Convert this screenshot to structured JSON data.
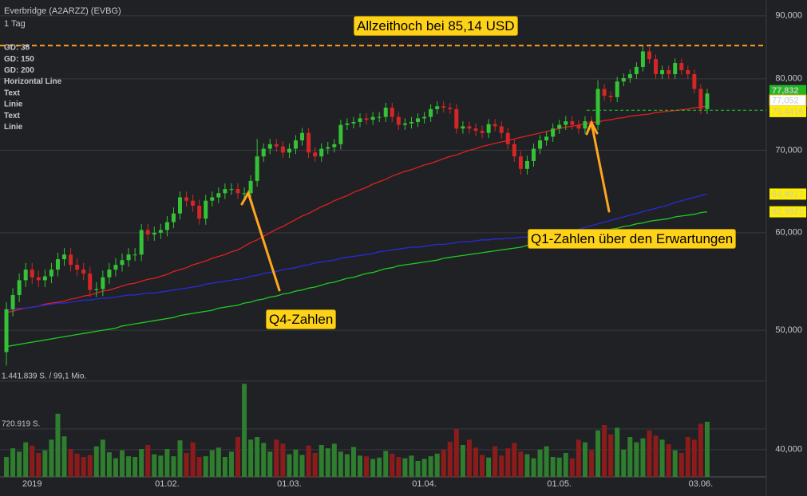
{
  "chart_data": {
    "type": "candlestick",
    "title": "Everbridge (A2ARZZ) (EVBG)",
    "subtitle": "1 Tag",
    "categories": [
      null,
      null,
      null,
      null,
      "2019",
      null,
      null,
      null,
      null,
      null,
      null,
      null,
      null,
      null,
      null,
      null,
      null,
      null,
      null,
      null,
      null,
      null,
      null,
      null,
      null,
      "01.02.",
      null,
      null,
      null,
      null,
      null,
      null,
      null,
      null,
      null,
      null,
      null,
      null,
      null,
      null,
      null,
      null,
      null,
      null,
      "01.03.",
      null,
      null,
      null,
      null,
      null,
      null,
      null,
      null,
      null,
      null,
      null,
      null,
      null,
      null,
      null,
      null,
      null,
      null,
      null,
      null,
      "01.04.",
      null,
      null,
      null,
      null,
      null,
      null,
      null,
      null,
      null,
      null,
      null,
      null,
      null,
      null,
      null,
      null,
      null,
      null,
      null,
      null,
      "01.05.",
      null,
      null,
      null,
      null,
      null,
      null,
      null,
      null,
      null,
      null,
      null,
      null,
      null,
      null,
      null,
      null,
      null,
      null,
      null,
      null,
      null,
      "03.06.",
      null
    ],
    "open": [
      48.0,
      52.0,
      53.4,
      54.9,
      56.0,
      55.2,
      54.9,
      55.3,
      56.0,
      57.1,
      57.6,
      56.5,
      56.0,
      55.6,
      53.9,
      54.0,
      55.2,
      56.0,
      56.5,
      57.0,
      57.6,
      57.6,
      60.3,
      59.8,
      60.0,
      60.3,
      61.2,
      62.2,
      64.1,
      63.7,
      63.1,
      61.6,
      63.7,
      64.1,
      64.6,
      65.1,
      65.1,
      64.6,
      64.6,
      66.1,
      69.2,
      70.2,
      70.8,
      70.5,
      69.7,
      70.2,
      71.3,
      72.3,
      69.7,
      69.2,
      70.2,
      70.4,
      70.8,
      73.4,
      73.6,
      73.8,
      74.3,
      74.1,
      74.5,
      74.5,
      75.8,
      74.5,
      73.4,
      73.6,
      73.8,
      74.3,
      74.5,
      75.6,
      76.0,
      75.8,
      75.6,
      72.9,
      73.2,
      72.9,
      72.6,
      72.3,
      73.5,
      73.2,
      72.3,
      70.8,
      69.2,
      67.6,
      68.6,
      70.2,
      71.3,
      71.8,
      72.9,
      73.4,
      73.9,
      73.4,
      72.9,
      73.9,
      73.4,
      78.5,
      77.5,
      77.3,
      79.6,
      80.1,
      80.7,
      81.8,
      84.2,
      83.0,
      80.7,
      81.3,
      80.7,
      82.4,
      81.3,
      80.7,
      78.5,
      75.6
    ],
    "high": [
      52.7,
      54.1,
      55.6,
      56.7,
      56.7,
      55.9,
      56.0,
      56.7,
      57.8,
      58.3,
      58.3,
      57.2,
      56.7,
      56.3,
      54.7,
      55.9,
      56.7,
      57.2,
      57.7,
      58.3,
      58.3,
      61.0,
      61.0,
      60.7,
      61.0,
      61.9,
      62.9,
      64.8,
      64.8,
      64.4,
      63.8,
      64.4,
      64.8,
      65.3,
      65.8,
      65.8,
      65.8,
      65.3,
      66.8,
      71.5,
      70.9,
      71.5,
      71.5,
      71.2,
      70.9,
      72.0,
      73.0,
      73.0,
      70.4,
      70.9,
      71.1,
      71.5,
      74.1,
      74.3,
      74.5,
      75.0,
      75.0,
      75.2,
      75.2,
      76.5,
      76.5,
      75.2,
      74.3,
      74.5,
      75.0,
      75.2,
      76.3,
      76.7,
      76.7,
      76.5,
      76.3,
      73.9,
      73.9,
      73.6,
      73.3,
      74.2,
      74.2,
      73.9,
      73.0,
      71.5,
      69.9,
      69.3,
      70.9,
      72.0,
      72.5,
      73.6,
      74.1,
      74.6,
      74.6,
      74.1,
      74.6,
      74.6,
      79.8,
      79.2,
      78.2,
      80.3,
      80.8,
      81.4,
      82.5,
      85.14,
      84.9,
      83.7,
      82.0,
      82.0,
      83.1,
      83.1,
      82.0,
      81.4,
      79.2,
      78.5
    ],
    "low": [
      46.8,
      51.3,
      52.7,
      54.2,
      54.5,
      54.2,
      54.2,
      54.6,
      55.3,
      56.4,
      55.8,
      55.3,
      54.9,
      53.2,
      53.2,
      53.3,
      54.5,
      55.3,
      55.8,
      56.3,
      56.9,
      56.9,
      59.1,
      59.1,
      59.3,
      59.6,
      60.5,
      61.5,
      63.0,
      62.4,
      60.9,
      60.9,
      63.0,
      63.4,
      63.9,
      64.4,
      63.9,
      63.9,
      63.9,
      65.4,
      68.5,
      69.5,
      69.8,
      69.0,
      69.0,
      69.5,
      70.6,
      69.0,
      68.5,
      68.5,
      69.5,
      69.7,
      70.1,
      72.7,
      72.9,
      73.1,
      73.4,
      73.4,
      73.8,
      73.8,
      73.8,
      72.7,
      72.7,
      72.9,
      73.1,
      73.6,
      73.8,
      74.9,
      75.1,
      74.9,
      72.2,
      72.2,
      72.2,
      71.9,
      71.6,
      71.6,
      72.5,
      71.6,
      70.1,
      68.5,
      66.9,
      66.9,
      67.9,
      69.5,
      70.6,
      71.1,
      72.2,
      72.7,
      72.7,
      72.2,
      72.2,
      72.7,
      72.7,
      76.8,
      76.6,
      76.6,
      78.9,
      79.4,
      80.0,
      81.1,
      82.3,
      80.0,
      80.0,
      80.0,
      80.0,
      80.6,
      80.0,
      77.8,
      74.9,
      74.9
    ],
    "close": [
      52.0,
      53.4,
      54.9,
      56.0,
      55.2,
      54.9,
      55.3,
      56.0,
      57.1,
      57.6,
      56.5,
      56.0,
      55.6,
      53.9,
      54.0,
      55.2,
      56.0,
      56.5,
      57.0,
      57.6,
      57.6,
      60.3,
      59.8,
      60.0,
      60.3,
      61.2,
      62.2,
      64.1,
      63.7,
      63.1,
      61.6,
      63.7,
      64.1,
      64.6,
      65.1,
      65.1,
      64.6,
      64.6,
      66.1,
      69.2,
      70.2,
      70.8,
      70.5,
      69.7,
      70.2,
      71.3,
      72.3,
      69.7,
      69.2,
      70.2,
      70.4,
      70.8,
      73.4,
      73.6,
      73.8,
      74.3,
      74.1,
      74.5,
      74.5,
      75.8,
      74.5,
      73.4,
      73.6,
      73.8,
      74.3,
      74.5,
      75.6,
      76.0,
      75.8,
      75.6,
      72.9,
      73.2,
      72.9,
      72.6,
      72.3,
      73.5,
      73.2,
      72.3,
      70.8,
      69.2,
      67.6,
      68.6,
      70.2,
      71.3,
      71.8,
      72.9,
      73.4,
      73.9,
      73.4,
      72.9,
      73.9,
      73.4,
      78.5,
      77.5,
      77.3,
      79.6,
      80.1,
      80.7,
      81.8,
      84.2,
      83.0,
      80.7,
      81.3,
      80.7,
      82.4,
      81.3,
      80.7,
      78.5,
      75.6,
      77.832
    ],
    "volume": [
      300000,
      430000,
      380000,
      520000,
      470000,
      360000,
      400000,
      560000,
      950000,
      610000,
      420000,
      350000,
      300000,
      330000,
      460000,
      560000,
      370000,
      280000,
      400000,
      310000,
      300000,
      420000,
      480000,
      340000,
      320000,
      420000,
      310000,
      550000,
      360000,
      520000,
      300000,
      310000,
      400000,
      440000,
      300000,
      380000,
      600000,
      1400000,
      560000,
      600000,
      510000,
      380000,
      560000,
      500000,
      340000,
      410000,
      330000,
      470000,
      360000,
      480000,
      430000,
      500000,
      380000,
      340000,
      450000,
      320000,
      310000,
      270000,
      290000,
      390000,
      350000,
      300000,
      280000,
      320000,
      240000,
      270000,
      310000,
      350000,
      410000,
      530000,
      720000,
      480000,
      560000,
      440000,
      330000,
      290000,
      460000,
      320000,
      430000,
      510000,
      380000,
      340000,
      280000,
      410000,
      460000,
      300000,
      290000,
      360000,
      280000,
      560000,
      520000,
      400000,
      700000,
      780000,
      640000,
      740000,
      410000,
      600000,
      520000,
      580000,
      700000,
      620000,
      560000,
      490000,
      400000,
      360000,
      600000,
      560000,
      800000,
      830000
    ],
    "up_color": "#36c236",
    "down_color": "#d42626",
    "volume_up_color": "#2f7d2f",
    "volume_down_color": "#8c1c1c",
    "series": [
      {
        "name": "GD: 38",
        "color": "#e02020",
        "values": [
          51.7,
          51.8,
          52.0,
          52.1,
          52.2,
          52.3,
          52.5,
          52.6,
          52.7,
          52.8,
          53.0,
          53.1,
          53.3,
          53.4,
          53.6,
          53.8,
          53.9,
          54.1,
          54.3,
          54.5,
          54.6,
          54.8,
          55.0,
          55.1,
          55.3,
          55.5,
          55.8,
          56.0,
          56.2,
          56.5,
          56.7,
          56.9,
          57.2,
          57.4,
          57.6,
          57.9,
          58.1,
          58.5,
          58.9,
          59.2,
          59.6,
          60.0,
          60.4,
          60.7,
          61.1,
          61.5,
          61.9,
          62.2,
          62.6,
          63.0,
          63.3,
          63.7,
          64.0,
          64.3,
          64.7,
          65.0,
          65.3,
          65.7,
          66.0,
          66.3,
          66.7,
          67.0,
          67.3,
          67.5,
          67.8,
          68.1,
          68.3,
          68.6,
          68.9,
          69.2,
          69.4,
          69.7,
          70.0,
          70.2,
          70.5,
          70.7,
          70.9,
          71.1,
          71.3,
          71.5,
          71.7,
          71.9,
          72.1,
          72.3,
          72.5,
          72.7,
          72.9,
          73.1,
          73.2,
          73.4,
          73.5,
          73.7,
          73.8,
          74.0,
          74.1,
          74.3,
          74.4,
          74.6,
          74.7,
          74.8,
          74.9,
          75.1,
          75.2,
          75.3,
          75.4,
          75.5,
          75.6,
          75.8,
          75.9,
          76.0
        ]
      },
      {
        "name": "GD: 150",
        "color": "#2a2ad8",
        "values": [
          51.9,
          52.0,
          52.1,
          52.1,
          52.2,
          52.3,
          52.4,
          52.5,
          52.6,
          52.6,
          52.7,
          52.8,
          52.9,
          52.9,
          53.0,
          53.1,
          53.1,
          53.2,
          53.3,
          53.4,
          53.4,
          53.5,
          53.6,
          53.6,
          53.7,
          53.8,
          53.9,
          54.0,
          54.1,
          54.2,
          54.3,
          54.5,
          54.6,
          54.7,
          54.8,
          54.9,
          55.0,
          55.1,
          55.3,
          55.4,
          55.6,
          55.7,
          55.8,
          56.0,
          56.1,
          56.2,
          56.4,
          56.5,
          56.7,
          56.8,
          56.9,
          57.0,
          57.2,
          57.3,
          57.4,
          57.5,
          57.6,
          57.7,
          57.9,
          58.0,
          58.1,
          58.2,
          58.3,
          58.4,
          58.4,
          58.5,
          58.6,
          58.7,
          58.7,
          58.8,
          58.9,
          59.0,
          59.0,
          59.1,
          59.2,
          59.2,
          59.3,
          59.3,
          59.4,
          59.4,
          59.5,
          59.5,
          59.6,
          59.6,
          59.7,
          59.7,
          59.8,
          60.0,
          60.2,
          60.4,
          60.6,
          60.8,
          61.0,
          61.2,
          61.4,
          61.6,
          61.8,
          62.0,
          62.2,
          62.4,
          62.6,
          62.8,
          63.0,
          63.2,
          63.5,
          63.7,
          63.9,
          64.1,
          64.3,
          64.4917
        ]
      },
      {
        "name": "GD: 200",
        "color": "#22c822",
        "values": [
          48.5,
          48.6,
          48.7,
          48.8,
          48.9,
          49.0,
          49.1,
          49.2,
          49.3,
          49.4,
          49.5,
          49.6,
          49.7,
          49.8,
          49.9,
          50.0,
          50.1,
          50.2,
          50.4,
          50.5,
          50.6,
          50.7,
          50.8,
          50.9,
          51.0,
          51.1,
          51.2,
          51.4,
          51.5,
          51.6,
          51.7,
          51.8,
          51.9,
          52.1,
          52.2,
          52.3,
          52.4,
          52.6,
          52.7,
          52.9,
          53.0,
          53.2,
          53.3,
          53.5,
          53.6,
          53.8,
          53.9,
          54.1,
          54.2,
          54.4,
          54.6,
          54.7,
          54.9,
          55.1,
          55.2,
          55.4,
          55.6,
          55.7,
          55.9,
          56.1,
          56.2,
          56.4,
          56.5,
          56.6,
          56.7,
          56.8,
          56.9,
          57.0,
          57.2,
          57.3,
          57.4,
          57.5,
          57.6,
          57.7,
          57.8,
          57.9,
          58.0,
          58.1,
          58.2,
          58.3,
          58.4,
          58.6,
          58.7,
          58.8,
          58.9,
          59.0,
          59.1,
          59.3,
          59.4,
          59.6,
          59.7,
          59.9,
          60.1,
          60.2,
          60.4,
          60.5,
          60.7,
          60.8,
          61.0,
          61.1,
          61.3,
          61.4,
          61.5,
          61.6,
          61.8,
          61.9,
          62.0,
          62.1,
          62.3,
          62.3922
        ]
      }
    ],
    "overlays": [
      {
        "name": "Horizontal Line",
        "color": "#ff9d1c",
        "value": 85.14
      },
      {
        "name": "Text",
        "color": "#ff9d1c"
      },
      {
        "name": "Linie",
        "color": "#ff9d1c"
      },
      {
        "name": "Text",
        "color": "#ff9d1c"
      },
      {
        "name": "Linie",
        "color": "#22cc22",
        "value": 75.4416
      }
    ],
    "annotations": [
      "Allzeithoch bei 85,14 USD",
      "Q4-Zahlen",
      "Q1-Zahlen über den Erwartungen"
    ],
    "price_labels": [
      {
        "value": 77.832,
        "label": "77,832",
        "bg": "#22b822"
      },
      {
        "value": 77.052,
        "label": "77,052",
        "bg": "#ffffff"
      },
      {
        "value": 75.4416,
        "label": "75,4416",
        "bg": "#ffee00"
      },
      {
        "value": 64.4917,
        "label": "64,4917",
        "bg": "#ffee00"
      },
      {
        "value": 62.3922,
        "label": "62,3922",
        "bg": "#ffee00"
      }
    ],
    "log_scale": true,
    "ylim": [
      37.9,
      92.7
    ],
    "yticks": [
      {
        "value": 90,
        "label": "90,000"
      },
      {
        "value": 80,
        "label": "80,000"
      },
      {
        "value": 70,
        "label": "70,000"
      },
      {
        "value": 60,
        "label": "60,000"
      },
      {
        "value": 50,
        "label": "50,000"
      },
      {
        "value": 40,
        "label": "40,000"
      }
    ],
    "vlim": [
      0,
      1500000
    ],
    "vticks": [
      {
        "value": 1441839,
        "label": "1.441.839 S. / 99,1 Mio."
      },
      {
        "value": 720919,
        "label": "720.919 S."
      }
    ],
    "grid": true
  }
}
